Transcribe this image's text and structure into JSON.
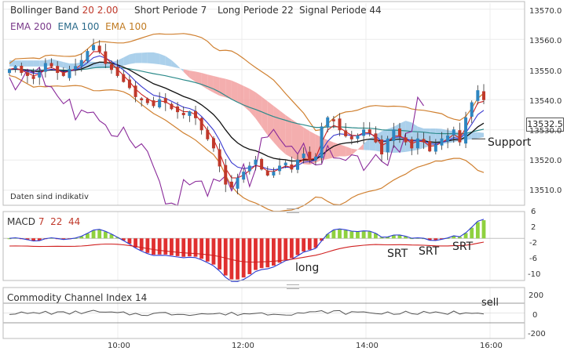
{
  "header": {
    "bb_label": "Bollinger Band",
    "bb_period": "20",
    "bb_dev": "2.00",
    "short_label": "Short Periode",
    "short_val": "7",
    "long_label": "Long Periode",
    "long_val": "22",
    "signal_label": "Signal Periode",
    "signal_val": "44",
    "ema1_label": "EMA",
    "ema1_val": "200",
    "ema2_label": "EMA",
    "ema2_val": "100",
    "ema3_label": "EMA",
    "ema3_val": "100"
  },
  "notice": "Daten sind indikativ",
  "price_box": "13532.5",
  "annotations": {
    "support": "Support",
    "long": "long",
    "srt1": "SRT",
    "srt2": "SRT",
    "srt3": "SRT",
    "sell": "sell"
  },
  "macd_header": {
    "label": "MACD",
    "v1": "7",
    "v2": "22",
    "v3": "44"
  },
  "cci_header": {
    "label": "Commodity Channel Index",
    "period": "14"
  },
  "colors": {
    "up": "#2e86c1",
    "down": "#c0392b",
    "cloud_red": "#f2a0a0",
    "cloud_blue": "#9cc8e8",
    "macd_pos": "#8fd13f",
    "macd_neg": "#e03030"
  },
  "chart_data": [
    {
      "type": "candlestick",
      "ylim": [
        13505,
        13572
      ],
      "y_ticks": [
        "13570.0",
        "13560.0",
        "13550.0",
        "13540.0",
        "13530.0",
        "13520.0",
        "13510.0"
      ],
      "x_ticks": [
        "10:00",
        "12:00",
        "14:00",
        "16:00"
      ],
      "last_price": 13532.5,
      "close": [
        13550,
        13551,
        13549,
        13548,
        13547,
        13549,
        13552,
        13551,
        13549,
        13548,
        13550,
        13551,
        13553,
        13556,
        13558,
        13556,
        13552,
        13550,
        13548,
        13546,
        13544,
        13541,
        13540,
        13539,
        13538,
        13540,
        13539,
        13537,
        13536,
        13535,
        13536,
        13534,
        13530,
        13527,
        13524,
        13518,
        13512,
        13511,
        13514,
        13516,
        13518,
        13520,
        13517,
        13515,
        13516,
        13518,
        13519,
        13517,
        13520,
        13522,
        13520,
        13521,
        13531,
        13534,
        13533,
        13530,
        13528,
        13527,
        13528,
        13530,
        13529,
        13526,
        13522,
        13527,
        13530,
        13528,
        13526,
        13524,
        13527,
        13526,
        13523,
        13525,
        13527,
        13528,
        13530,
        13526,
        13534,
        13539,
        13543,
        13540
      ]
    },
    {
      "type": "bar",
      "name": "MACD",
      "ylim": [
        -11,
        7
      ],
      "y_ticks": [
        "6",
        "2",
        "-2",
        "-6",
        "-10"
      ]
    },
    {
      "type": "line",
      "name": "Commodity Channel Index",
      "ylim": [
        -260,
        260
      ],
      "y_ticks": [
        "200",
        "0",
        "-200"
      ]
    }
  ]
}
